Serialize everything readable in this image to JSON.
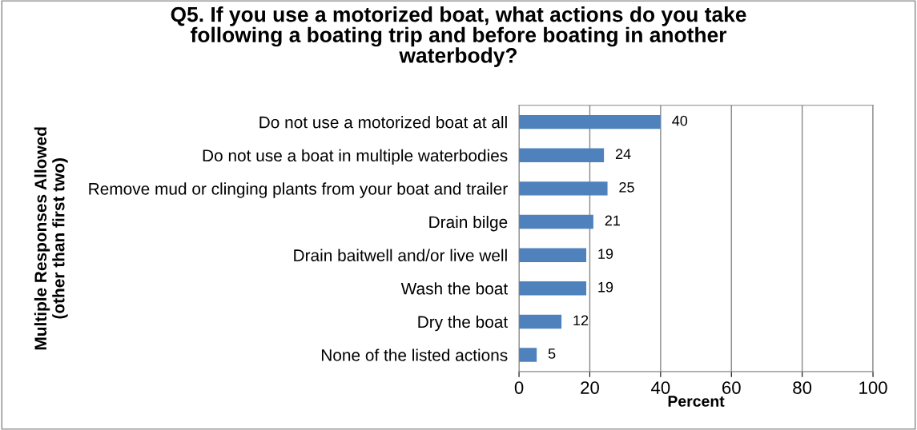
{
  "chart_data": {
    "type": "bar",
    "orientation": "horizontal",
    "title": "Q5. If you use a motorized boat, what actions do you take\nfollowing a boating trip and before boating in another\nwaterbody?",
    "xlabel": "Percent",
    "ylabel": "Multiple Responses Allowed\n(other than first two)",
    "categories": [
      "Do not use a motorized boat at all",
      "Do not use a boat in multiple waterbodies",
      "Remove mud or clinging plants from your boat and trailer",
      "Drain bilge",
      "Drain baitwell and/or live well",
      "Wash the boat",
      "Dry the boat",
      "None of the listed actions"
    ],
    "values": [
      40,
      24,
      25,
      21,
      19,
      19,
      12,
      5
    ],
    "color": "#4f81bd",
    "xlim": [
      0,
      100
    ],
    "xticks": [
      0,
      20,
      40,
      60,
      80,
      100
    ],
    "grid": "x",
    "data_labels": true
  }
}
